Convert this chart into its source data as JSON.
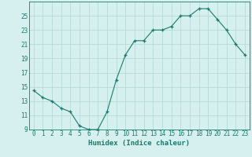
{
  "x": [
    0,
    1,
    2,
    3,
    4,
    5,
    6,
    7,
    8,
    9,
    10,
    11,
    12,
    13,
    14,
    15,
    16,
    17,
    18,
    19,
    20,
    21,
    22,
    23
  ],
  "y": [
    14.5,
    13.5,
    13,
    12,
    11.5,
    9.5,
    9,
    9,
    11.5,
    16,
    19.5,
    21.5,
    21.5,
    23,
    23,
    23.5,
    25,
    25,
    26,
    26,
    24.5,
    23,
    21,
    19.5
  ],
  "line_color": "#1a7a6e",
  "marker": "+",
  "marker_size": 3,
  "bg_color": "#d5f0ee",
  "grid_color": "#b8dbd8",
  "tick_color": "#1a7a6e",
  "label_color": "#1a7a6e",
  "xlabel": "Humidex (Indice chaleur)",
  "ylim": [
    9,
    27
  ],
  "yticks": [
    9,
    11,
    13,
    15,
    17,
    19,
    21,
    23,
    25
  ],
  "xticks": [
    0,
    1,
    2,
    3,
    4,
    5,
    6,
    7,
    8,
    9,
    10,
    11,
    12,
    13,
    14,
    15,
    16,
    17,
    18,
    19,
    20,
    21,
    22,
    23
  ],
  "tick_fontsize": 5.5,
  "xlabel_fontsize": 6.5
}
